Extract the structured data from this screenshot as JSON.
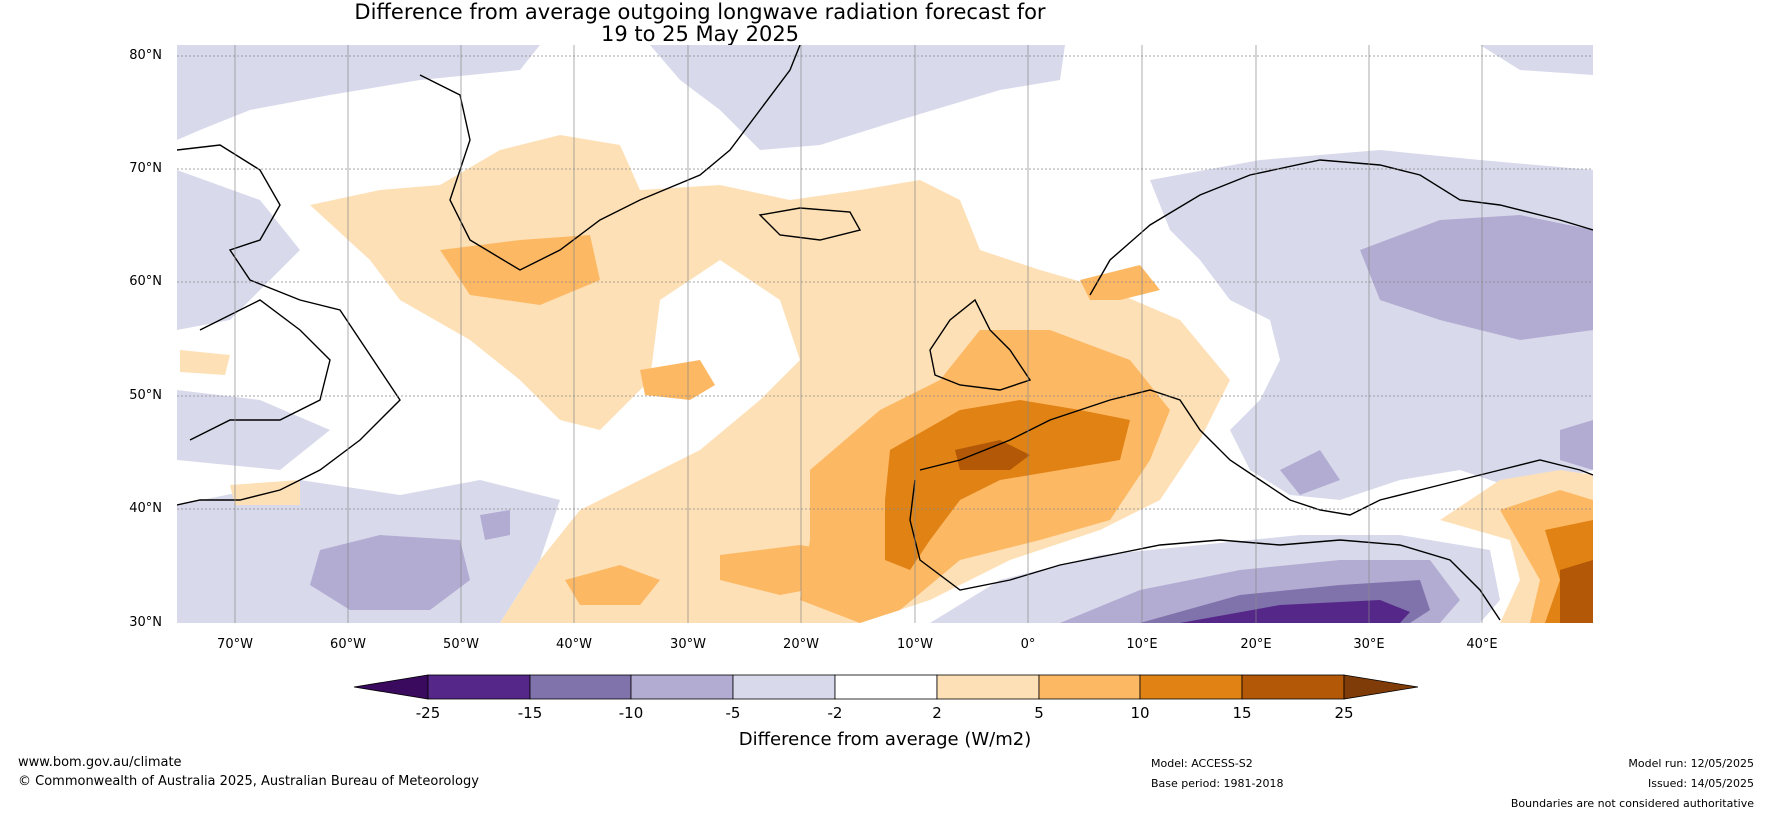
{
  "map": {
    "title_line1": "Difference from average outgoing longwave radiation forecast for",
    "title_line2": "19 to 25 May 2025",
    "lat_labels": [
      "80°N",
      "70°N",
      "60°N",
      "50°N",
      "40°N",
      "30°N"
    ],
    "lon_labels": [
      "70°W",
      "60°W",
      "50°W",
      "40°W",
      "30°W",
      "20°W",
      "10°W",
      "0°",
      "10°E",
      "20°E",
      "30°E",
      "40°E"
    ]
  },
  "colorbar": {
    "ticks": [
      "-25",
      "-15",
      "-10",
      "-5",
      "-2",
      "2",
      "5",
      "10",
      "15",
      "25"
    ],
    "colors": [
      "#3a0a5e",
      "#542788",
      "#8073ac",
      "#b2abd2",
      "#d8daeb",
      "#ffffff",
      "#fee0b6",
      "#fdb863",
      "#e08214",
      "#b35806",
      "#7f3b08"
    ],
    "label": "Difference from average (W/m2)"
  },
  "footer": {
    "website": "www.bom.gov.au/climate",
    "copyright": "© Commonwealth of Australia 2025, Australian Bureau of Meteorology",
    "model": "Model: ACCESS-S2",
    "base_period": "Base period: 1981-2018",
    "model_run": "Model run: 12/05/2025",
    "issued": "Issued: 14/05/2025",
    "disclaimer": "Boundaries are not considered authoritative"
  }
}
